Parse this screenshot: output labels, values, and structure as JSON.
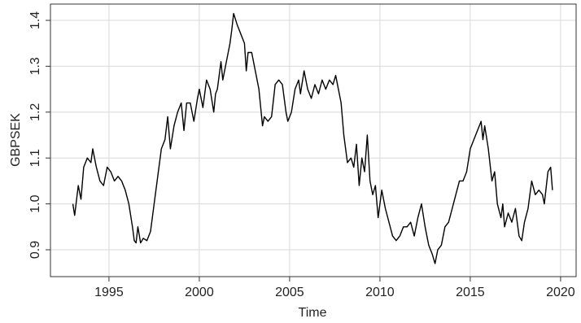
{
  "chart_data": {
    "type": "line",
    "xlabel": "Time",
    "ylabel": "GBPSEK",
    "color": "#000000",
    "grid": true,
    "x": [
      1993.0,
      1993.1,
      1993.3,
      1993.45,
      1993.6,
      1993.8,
      1994.0,
      1994.1,
      1994.3,
      1994.5,
      1994.7,
      1994.9,
      1995.1,
      1995.3,
      1995.5,
      1995.7,
      1995.9,
      1996.1,
      1996.3,
      1996.4,
      1996.5,
      1996.6,
      1996.75,
      1996.9,
      1997.1,
      1997.3,
      1997.5,
      1997.7,
      1997.9,
      1998.1,
      1998.25,
      1998.4,
      1998.6,
      1998.8,
      1999.0,
      1999.15,
      1999.3,
      1999.5,
      1999.7,
      1999.9,
      2000.0,
      2000.2,
      2000.4,
      2000.6,
      2000.8,
      2000.9,
      2001.0,
      2001.2,
      2001.3,
      2001.5,
      2001.7,
      2001.8,
      2001.9,
      2002.1,
      2002.3,
      2002.5,
      2002.6,
      2002.7,
      2002.9,
      2003.1,
      2003.3,
      2003.5,
      2003.6,
      2003.8,
      2004.0,
      2004.2,
      2004.4,
      2004.6,
      2004.8,
      2004.9,
      2005.1,
      2005.3,
      2005.5,
      2005.6,
      2005.8,
      2006.0,
      2006.2,
      2006.4,
      2006.6,
      2006.8,
      2007.0,
      2007.2,
      2007.4,
      2007.55,
      2007.7,
      2007.85,
      2008.0,
      2008.2,
      2008.4,
      2008.55,
      2008.7,
      2008.85,
      2009.0,
      2009.15,
      2009.3,
      2009.45,
      2009.6,
      2009.75,
      2009.9,
      2010.1,
      2010.3,
      2010.5,
      2010.7,
      2010.9,
      2011.1,
      2011.3,
      2011.5,
      2011.7,
      2011.9,
      2012.1,
      2012.3,
      2012.5,
      2012.7,
      2012.9,
      2013.05,
      2013.2,
      2013.4,
      2013.6,
      2013.8,
      2014.0,
      2014.2,
      2014.4,
      2014.6,
      2014.8,
      2015.0,
      2015.2,
      2015.4,
      2015.6,
      2015.7,
      2015.8,
      2016.0,
      2016.2,
      2016.35,
      2016.5,
      2016.7,
      2016.8,
      2016.9,
      2017.1,
      2017.3,
      2017.5,
      2017.7,
      2017.85,
      2018.0,
      2018.2,
      2018.4,
      2018.6,
      2018.8,
      2019.0,
      2019.1,
      2019.3,
      2019.45,
      2019.55
    ],
    "values": [
      1.0,
      0.975,
      1.04,
      1.01,
      1.08,
      1.1,
      1.09,
      1.12,
      1.08,
      1.05,
      1.04,
      1.08,
      1.07,
      1.05,
      1.06,
      1.05,
      1.03,
      1.0,
      0.95,
      0.92,
      0.915,
      0.95,
      0.915,
      0.925,
      0.92,
      0.94,
      1.0,
      1.06,
      1.12,
      1.14,
      1.19,
      1.12,
      1.17,
      1.2,
      1.22,
      1.16,
      1.22,
      1.22,
      1.18,
      1.23,
      1.25,
      1.21,
      1.27,
      1.25,
      1.2,
      1.24,
      1.25,
      1.31,
      1.27,
      1.31,
      1.35,
      1.38,
      1.415,
      1.39,
      1.37,
      1.35,
      1.29,
      1.33,
      1.33,
      1.29,
      1.25,
      1.17,
      1.19,
      1.18,
      1.19,
      1.26,
      1.27,
      1.26,
      1.2,
      1.18,
      1.2,
      1.25,
      1.27,
      1.24,
      1.29,
      1.25,
      1.23,
      1.26,
      1.24,
      1.27,
      1.25,
      1.27,
      1.26,
      1.28,
      1.25,
      1.22,
      1.15,
      1.09,
      1.1,
      1.08,
      1.13,
      1.04,
      1.1,
      1.07,
      1.15,
      1.05,
      1.02,
      1.04,
      0.97,
      1.03,
      0.99,
      0.96,
      0.93,
      0.92,
      0.93,
      0.95,
      0.95,
      0.96,
      0.93,
      0.97,
      1.0,
      0.95,
      0.91,
      0.89,
      0.87,
      0.9,
      0.91,
      0.95,
      0.96,
      0.99,
      1.02,
      1.05,
      1.05,
      1.07,
      1.12,
      1.14,
      1.16,
      1.18,
      1.14,
      1.17,
      1.12,
      1.05,
      1.07,
      1.0,
      0.97,
      1.0,
      0.95,
      0.98,
      0.96,
      0.99,
      0.93,
      0.92,
      0.96,
      0.99,
      1.05,
      1.02,
      1.03,
      1.02,
      1.0,
      1.07,
      1.08,
      1.03
    ],
    "xlim": [
      1991.76,
      2020.86
    ],
    "ylim": [
      0.8415,
      1.4355
    ],
    "xticks": [
      1995,
      2000,
      2005,
      2010,
      2015,
      2020
    ],
    "yticks": [
      0.9,
      {
        "value": 1,
        "label": "1.0"
      },
      1.1,
      1.2,
      1.3,
      1.4
    ]
  }
}
